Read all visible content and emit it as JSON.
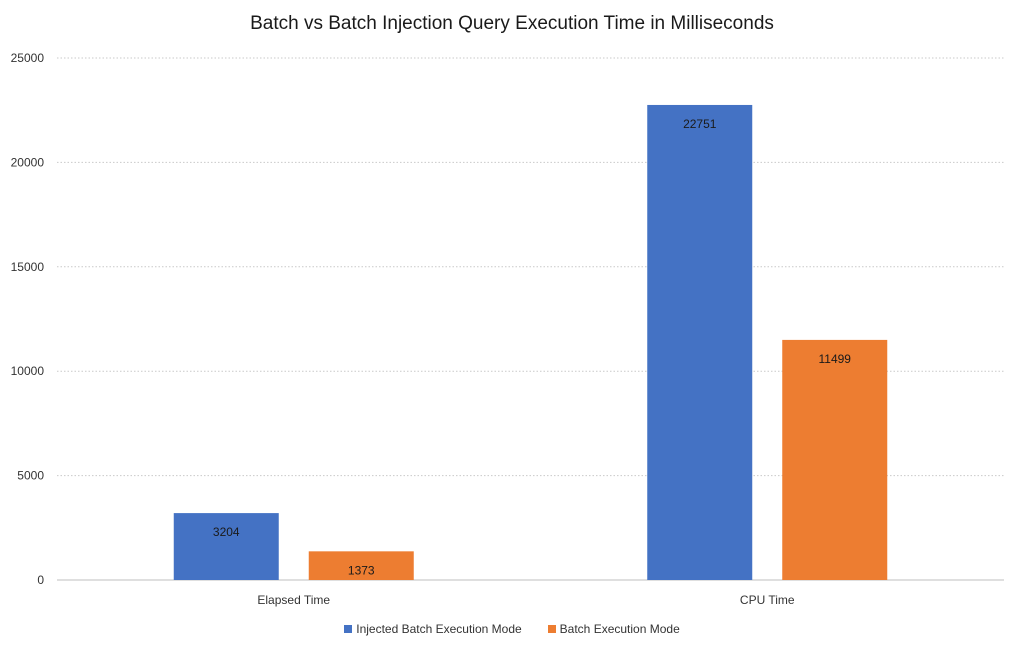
{
  "chart_data": {
    "type": "bar",
    "title": "Batch vs Batch Injection Query Execution Time in Milliseconds",
    "xlabel": "",
    "ylabel": "",
    "categories": [
      "Elapsed Time",
      "CPU Time"
    ],
    "series": [
      {
        "name": "Injected Batch Execution Mode",
        "values": [
          3204,
          22751
        ],
        "color": "#4472C4"
      },
      {
        "name": "Batch Execution Mode",
        "values": [
          1373,
          11499
        ],
        "color": "#ED7D31"
      }
    ],
    "ylim": [
      0,
      25000
    ],
    "yticks": [
      0,
      5000,
      10000,
      15000,
      20000,
      25000
    ],
    "grid": true,
    "data_labels": true,
    "legend_position": "bottom"
  }
}
